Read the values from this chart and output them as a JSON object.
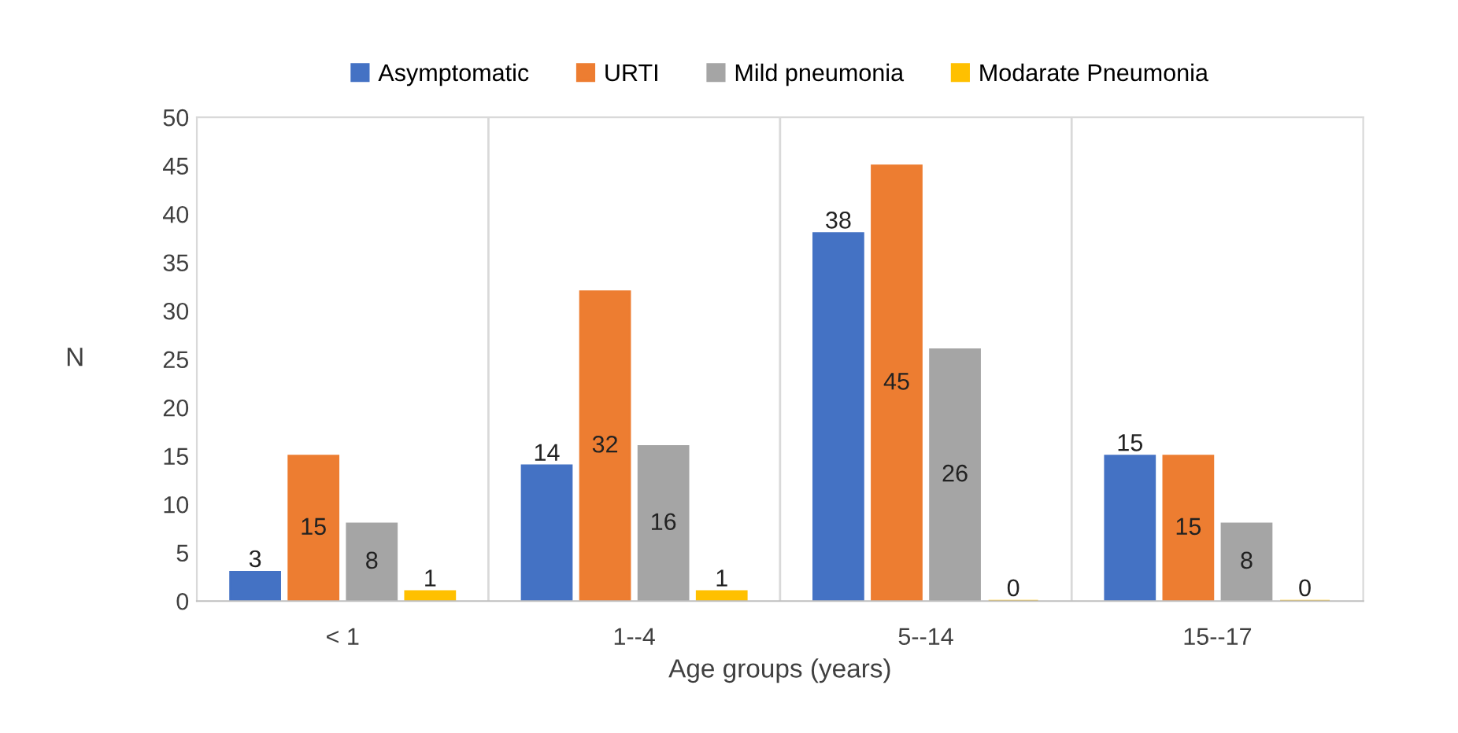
{
  "chart_data": {
    "type": "bar",
    "xlabel": "Age groups (years)",
    "ylabel": "N",
    "categories": [
      "< 1",
      "1--4",
      "5--14",
      "15--17"
    ],
    "series": [
      {
        "name": "Asymptomatic",
        "color": "#4472c4",
        "values": [
          3,
          14,
          38,
          15
        ]
      },
      {
        "name": "URTI",
        "color": "#ed7d31",
        "values": [
          15,
          32,
          45,
          15
        ]
      },
      {
        "name": "Mild pneumonia",
        "color": "#a5a5a5",
        "values": [
          8,
          16,
          26,
          8
        ]
      },
      {
        "name": "Modarate Pneumonia",
        "color": "#ffc000",
        "values": [
          1,
          1,
          0,
          0
        ]
      }
    ],
    "ylim": [
      0,
      50
    ],
    "yticks": [
      0,
      5,
      10,
      15,
      20,
      25,
      30,
      35,
      40,
      45,
      50
    ],
    "data_labels": true,
    "legend": "top",
    "grid": "x"
  }
}
